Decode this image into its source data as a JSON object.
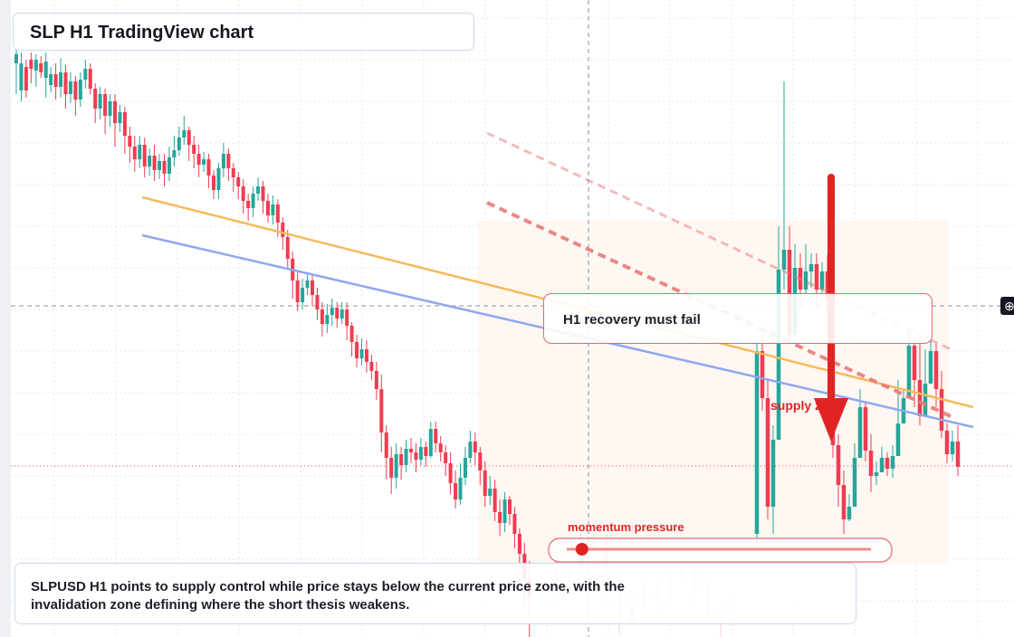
{
  "title": "SLP H1 TradingView chart",
  "annotations": {
    "recovery_box": "H1 recovery must fail",
    "supply_label": "supply zone",
    "momentum_label": "momentum pressure",
    "caption": "SLPUSD H1 points to supply control while price stays below the current price zone, with the invalidation zone defining where the short thesis weakens."
  },
  "colors": {
    "bull": "#26a69a",
    "bear": "#ef3c52",
    "orange_line": "#f7b95c",
    "blue_line": "#8ea7ee",
    "accent_red": "#e02424",
    "dashed_red": "#e87a7a"
  },
  "chart_data": {
    "type": "candlestick",
    "timeframe": "H1",
    "symbol": "SLPUSD",
    "y_scale": "pixel-relative",
    "ohlc": [
      [
        70,
        60,
        104,
        50
      ],
      [
        100,
        70,
        112,
        58
      ],
      [
        74,
        100,
        108,
        66
      ],
      [
        66,
        76,
        92,
        58
      ],
      [
        78,
        66,
        96,
        60
      ],
      [
        70,
        80,
        86,
        62
      ],
      [
        86,
        68,
        108,
        58
      ],
      [
        94,
        82,
        102,
        74
      ],
      [
        82,
        96,
        110,
        70
      ],
      [
        96,
        80,
        108,
        64
      ],
      [
        80,
        104,
        120,
        72
      ],
      [
        104,
        90,
        114,
        80
      ],
      [
        90,
        110,
        128,
        84
      ],
      [
        110,
        88,
        118,
        80
      ],
      [
        88,
        76,
        98,
        66
      ],
      [
        76,
        98,
        104,
        70
      ],
      [
        98,
        120,
        136,
        92
      ],
      [
        120,
        104,
        132,
        96
      ],
      [
        104,
        128,
        148,
        98
      ],
      [
        128,
        112,
        140,
        104
      ],
      [
        112,
        136,
        162,
        104
      ],
      [
        136,
        124,
        146,
        116
      ],
      [
        124,
        150,
        170,
        118
      ],
      [
        150,
        162,
        180,
        140
      ],
      [
        162,
        176,
        190,
        150
      ],
      [
        176,
        160,
        186,
        150
      ],
      [
        160,
        184,
        196,
        152
      ],
      [
        184,
        172,
        194,
        164
      ],
      [
        172,
        188,
        200,
        160
      ],
      [
        188,
        178,
        198,
        170
      ],
      [
        178,
        192,
        206,
        170
      ],
      [
        192,
        174,
        200,
        162
      ],
      [
        174,
        166,
        184,
        150
      ],
      [
        166,
        152,
        172,
        140
      ],
      [
        152,
        144,
        160,
        128
      ],
      [
        144,
        160,
        178,
        140
      ],
      [
        160,
        170,
        186,
        150
      ],
      [
        170,
        182,
        196,
        160
      ],
      [
        182,
        176,
        190,
        168
      ],
      [
        176,
        194,
        208,
        170
      ],
      [
        194,
        210,
        220,
        188
      ],
      [
        210,
        186,
        220,
        180
      ],
      [
        186,
        170,
        196,
        158
      ],
      [
        170,
        186,
        200,
        164
      ],
      [
        186,
        196,
        212,
        180
      ],
      [
        196,
        206,
        220,
        190
      ],
      [
        206,
        222,
        236,
        198
      ],
      [
        222,
        230,
        244,
        214
      ],
      [
        230,
        214,
        240,
        206
      ],
      [
        214,
        206,
        222,
        196
      ],
      [
        206,
        222,
        236,
        200
      ],
      [
        222,
        238,
        246,
        214
      ],
      [
        238,
        226,
        248,
        216
      ],
      [
        226,
        246,
        262,
        220
      ],
      [
        246,
        262,
        276,
        240
      ],
      [
        262,
        286,
        296,
        254
      ],
      [
        286,
        310,
        330,
        278
      ],
      [
        310,
        334,
        344,
        300
      ],
      [
        334,
        318,
        342,
        308
      ],
      [
        318,
        310,
        326,
        302
      ],
      [
        310,
        326,
        338,
        304
      ],
      [
        326,
        342,
        354,
        318
      ],
      [
        342,
        358,
        372,
        334
      ],
      [
        358,
        348,
        368,
        336
      ],
      [
        348,
        340,
        360,
        330
      ],
      [
        340,
        352,
        362,
        334
      ],
      [
        352,
        342,
        358,
        334
      ],
      [
        342,
        360,
        376,
        334
      ],
      [
        360,
        378,
        394,
        356
      ],
      [
        378,
        396,
        406,
        370
      ],
      [
        396,
        386,
        404,
        374
      ],
      [
        386,
        400,
        412,
        376
      ],
      [
        400,
        410,
        420,
        392
      ],
      [
        410,
        430,
        442,
        400
      ],
      [
        430,
        478,
        500,
        414
      ],
      [
        478,
        506,
        530,
        470
      ],
      [
        506,
        528,
        546,
        494
      ],
      [
        528,
        502,
        540,
        490
      ],
      [
        502,
        514,
        530,
        494
      ],
      [
        514,
        496,
        522,
        486
      ],
      [
        496,
        500,
        512,
        484
      ],
      [
        500,
        508,
        522,
        490
      ],
      [
        508,
        494,
        514,
        484
      ],
      [
        494,
        504,
        516,
        488
      ],
      [
        504,
        474,
        506,
        466
      ],
      [
        474,
        490,
        500,
        466
      ],
      [
        490,
        500,
        510,
        482
      ],
      [
        500,
        512,
        526,
        492
      ],
      [
        512,
        534,
        546,
        500
      ],
      [
        534,
        552,
        562,
        520
      ],
      [
        552,
        528,
        558,
        512
      ],
      [
        528,
        506,
        536,
        494
      ],
      [
        506,
        488,
        512,
        476
      ],
      [
        488,
        500,
        514,
        478
      ],
      [
        500,
        520,
        536,
        494
      ],
      [
        520,
        548,
        560,
        510
      ],
      [
        548,
        540,
        558,
        526
      ],
      [
        540,
        566,
        576,
        530
      ],
      [
        566,
        578,
        592,
        552
      ],
      [
        578,
        552,
        588,
        544
      ],
      [
        552,
        568,
        580,
        548
      ],
      [
        568,
        590,
        606,
        560
      ],
      [
        590,
        612,
        632,
        584
      ],
      [
        612,
        640,
        666,
        600
      ],
      [
        640,
        660,
        704,
        620
      ]
    ],
    "ohlc_right": [
      [
        590,
        388,
        600,
        380
      ],
      [
        388,
        440,
        454,
        370
      ],
      [
        440,
        560,
        574,
        420
      ],
      [
        560,
        486,
        590,
        470
      ],
      [
        486,
        298,
        306,
        250
      ],
      [
        298,
        276,
        320,
        90
      ],
      [
        276,
        370,
        380,
        250
      ],
      [
        370,
        296,
        310,
        270
      ],
      [
        296,
        320,
        342,
        280
      ],
      [
        320,
        300,
        326,
        270
      ],
      [
        300,
        292,
        318,
        280
      ],
      [
        292,
        320,
        340,
        280
      ],
      [
        320,
        300,
        330,
        290
      ],
      [
        300,
        330,
        344,
        282
      ],
      [
        330,
        492,
        506,
        316
      ],
      [
        492,
        536,
        560,
        480
      ],
      [
        536,
        574,
        590,
        520
      ],
      [
        574,
        560,
        576,
        546
      ],
      [
        560,
        506,
        536,
        490
      ],
      [
        506,
        450,
        500,
        430
      ],
      [
        450,
        498,
        510,
        444
      ],
      [
        498,
        526,
        544,
        480
      ],
      [
        526,
        522,
        536,
        510
      ],
      [
        522,
        506,
        520,
        494
      ],
      [
        506,
        518,
        526,
        500
      ],
      [
        518,
        504,
        528,
        492
      ],
      [
        504,
        468,
        480,
        420
      ],
      [
        468,
        440,
        462,
        430
      ],
      [
        440,
        382,
        410,
        366
      ],
      [
        382,
        420,
        450,
        374
      ],
      [
        420,
        460,
        470,
        380
      ],
      [
        460,
        424,
        440,
        386
      ],
      [
        424,
        388,
        408,
        374
      ],
      [
        388,
        430,
        450,
        380
      ],
      [
        430,
        476,
        484,
        410
      ],
      [
        476,
        502,
        512,
        468
      ],
      [
        502,
        488,
        510,
        476
      ],
      [
        488,
        516,
        526,
        470
      ]
    ],
    "ohlc_faded": [
      [
        620,
        650,
        672,
        608
      ],
      [
        650,
        630,
        660,
        618
      ],
      [
        630,
        610,
        630,
        590
      ],
      [
        610,
        598,
        620,
        590
      ],
      [
        598,
        640,
        656,
        590
      ],
      [
        640,
        690,
        700,
        630
      ],
      [
        690,
        668,
        692,
        650
      ],
      [
        668,
        650,
        672,
        640
      ],
      [
        650,
        660,
        676,
        642
      ],
      [
        660,
        640,
        660,
        626
      ],
      [
        640,
        628,
        642,
        612
      ],
      [
        628,
        650,
        664,
        620
      ],
      [
        650,
        680,
        690,
        640
      ],
      [
        680,
        690,
        704,
        670
      ],
      [
        690,
        676,
        692,
        660
      ]
    ],
    "trend_lines": [
      {
        "name": "orange",
        "from": [
          157,
          218
        ],
        "to": [
          1075,
          450
        ]
      },
      {
        "name": "blue",
        "from": [
          157,
          260
        ],
        "to": [
          1075,
          472
        ]
      }
    ],
    "dashed_lines": [
      {
        "from": [
          538,
          224
        ],
        "to": [
          1050,
          460
        ],
        "opacity": 0.9,
        "width": 4
      },
      {
        "from": [
          538,
          147
        ],
        "to": [
          1050,
          386
        ],
        "opacity": 0.5,
        "width": 3
      }
    ],
    "horizontal_lines": {
      "crosshair_y": 338,
      "current_price_y": 515,
      "crosshair_x": 650
    },
    "arrow": {
      "x": 918,
      "top": 196,
      "tip": 488
    },
    "momentum_slider": {
      "value": 0.05
    }
  }
}
